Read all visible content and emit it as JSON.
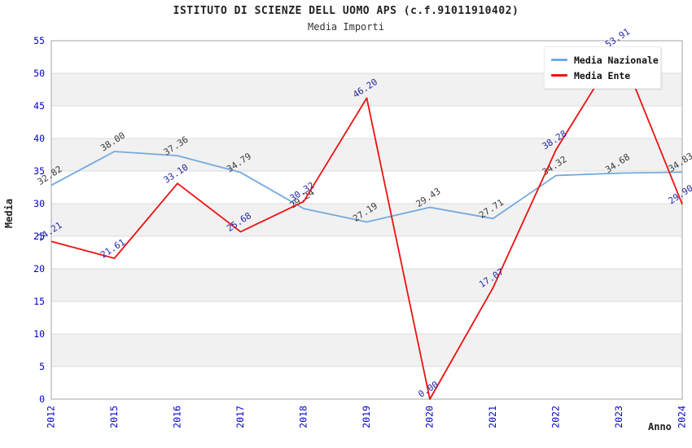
{
  "header": {
    "title": "ISTITUTO DI SCIENZE DELL UOMO APS (c.f.91011910402)",
    "subtitle": "Media Importi"
  },
  "chart_data": {
    "type": "line",
    "title": "ISTITUTO DI SCIENZE DELL UOMO APS (c.f.91011910402)",
    "subtitle": "Media Importi",
    "xlabel": "Anno",
    "ylabel": "Media",
    "ylim": [
      0,
      55
    ],
    "ytick_step": 5,
    "grid": true,
    "alternating_bands": true,
    "legend_position": "top-right",
    "categories": [
      "2012",
      "2015",
      "2016",
      "2017",
      "2018",
      "2019",
      "2020",
      "2021",
      "2022",
      "2023",
      "2024"
    ],
    "series": [
      {
        "name": "Media Nazionale",
        "color": "#74aade",
        "label_color": "#3a3a3a",
        "values": [
          32.82,
          38.0,
          37.36,
          34.79,
          29.24,
          27.19,
          29.43,
          27.71,
          34.32,
          34.68,
          34.83
        ],
        "labels": [
          "32.82",
          "38.00",
          "37.36",
          "34.79",
          "29.24",
          "27.19",
          "29.43",
          "27.71",
          "34.32",
          "34.68",
          "34.83"
        ]
      },
      {
        "name": "Media Ente",
        "color": "#ee1111",
        "label_color": "#2525aa",
        "values": [
          24.21,
          21.61,
          33.1,
          25.68,
          30.32,
          46.2,
          0.0,
          17.07,
          38.28,
          53.91,
          29.9
        ],
        "labels": [
          "24.21",
          "21.61",
          "33.10",
          "25.68",
          "30.32",
          "46.20",
          "0.00",
          "17.07",
          "38.28",
          "53.91",
          "29.90"
        ]
      }
    ],
    "colors": {
      "tick_label": "#0000cc",
      "gridline": "#dcdcdc",
      "band_fill": "#f1f1f1",
      "frame": "#a6a6a6",
      "title_text": "#222222"
    }
  }
}
